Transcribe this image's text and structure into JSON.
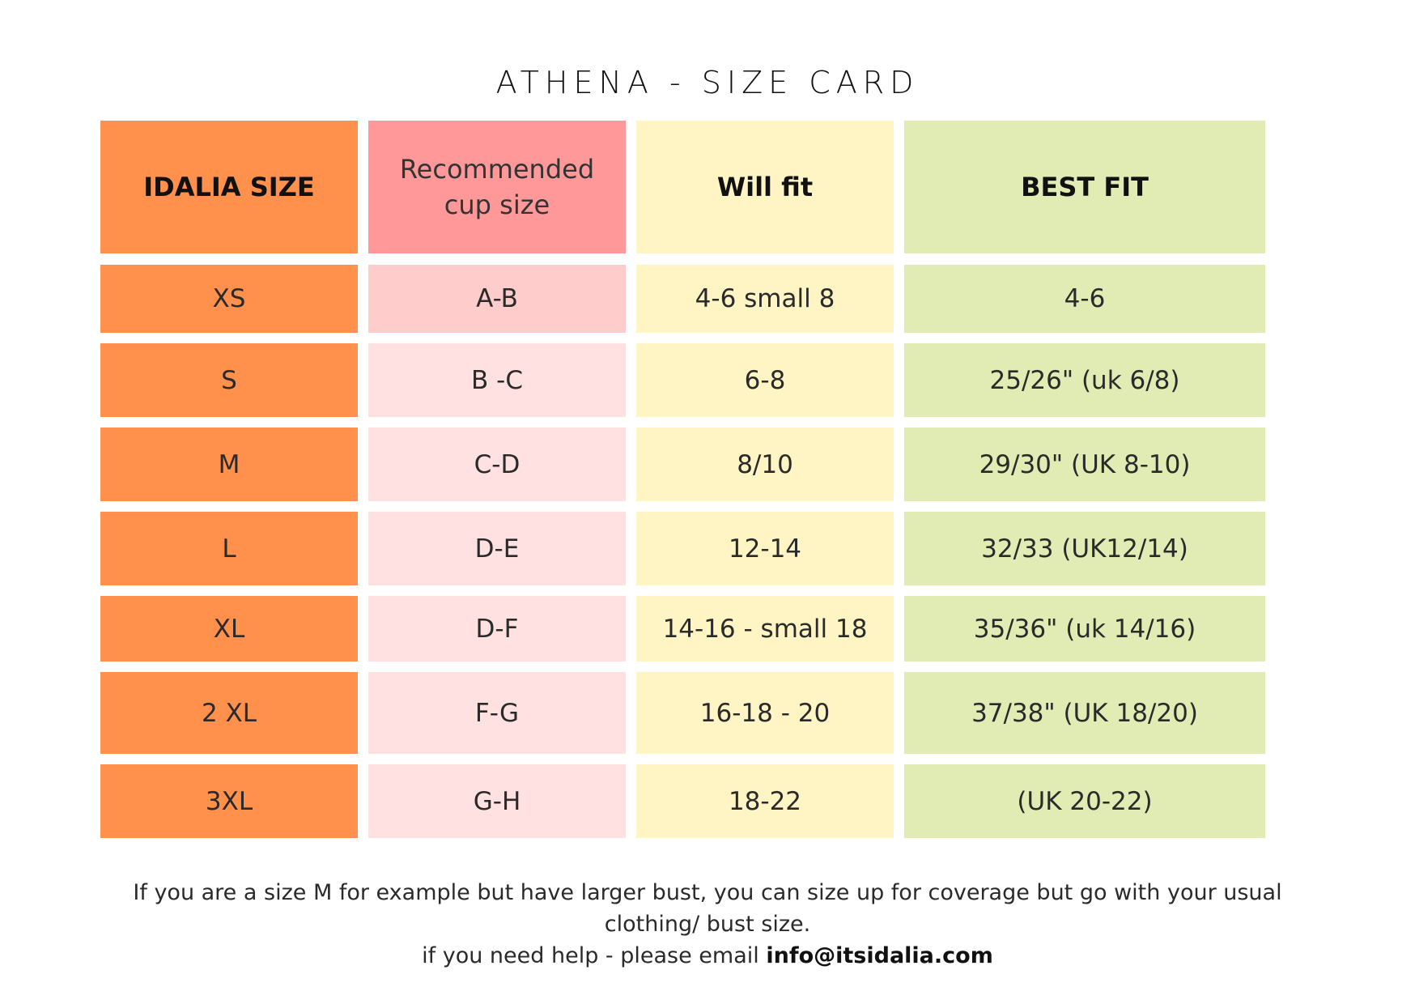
{
  "title": "ATHENA -  SIZE CARD",
  "table": {
    "headers": [
      "IDALIA SIZE",
      "Recommended cup size",
      "Will fit",
      "BEST FIT"
    ],
    "rows": [
      [
        "XS",
        "A-B",
        "4-6 small 8",
        "4-6"
      ],
      [
        "S",
        "B -C",
        "6-8",
        "25/26\" (uk 6/8)"
      ],
      [
        "M",
        "C-D",
        "8/10",
        "29/30\" (UK 8-10)"
      ],
      [
        "L",
        "D-E",
        "12-14",
        "32/33 (UK12/14)"
      ],
      [
        "XL",
        "D-F",
        "14-16 - small 18",
        "35/36\" (uk 14/16)"
      ],
      [
        "2 XL",
        "F-G",
        "16-18 - 20",
        "37/38\" (UK 18/20)"
      ],
      [
        "3XL",
        "G-H",
        "18-22",
        "(UK 20-22)"
      ]
    ]
  },
  "footer": {
    "line1": "If you are a size M for example but have larger bust, you can size up for coverage but go with your usual clothing/ bust size.",
    "line2_prefix": "if you need help - please email ",
    "email": "info@itsidalia.com"
  },
  "colors": {
    "size_column": "#ff914d",
    "cup_header": "#ff9999",
    "cup_first_row": "#ffcccc",
    "cup_rows": "#ffe1e1",
    "will_fit_column": "#fff4c3",
    "best_fit_column": "#e1ebb4"
  }
}
